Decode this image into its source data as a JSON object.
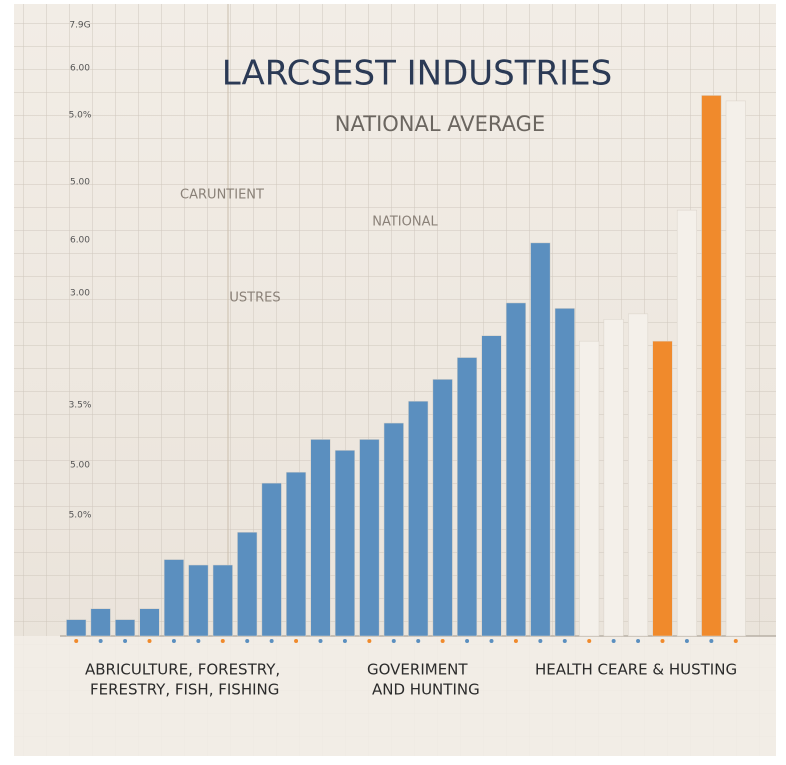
{
  "chart_data": {
    "type": "bar",
    "title": "LARCSEST INDUSTRIES",
    "subtitle": "NATIONAL AVERAGE",
    "annotations": [
      "CARUNTIENT",
      "NATIONAL",
      "USTRES"
    ],
    "side_labels": [
      "7.9G",
      "6.00",
      "5.0%",
      "5.00",
      "6.00",
      "3.00",
      "3.5%",
      "5.00",
      "5.0%"
    ],
    "category_labels": [
      "ABRICULTURE, FORESTRY,",
      "FERESTRY, FISH, FISHING",
      "GOVERIMENT",
      "AND HUNTING",
      "HEALTH CEARE & HUSTING"
    ],
    "categories": [
      null,
      null,
      null,
      null,
      null,
      null,
      null,
      null,
      null,
      null,
      null,
      null,
      null,
      null,
      null,
      null,
      null,
      null,
      null,
      null,
      null,
      null,
      null,
      null,
      null,
      null,
      null,
      null
    ],
    "values": [
      3,
      5,
      3,
      5,
      14,
      13,
      13,
      19,
      28,
      30,
      36,
      34,
      36,
      39,
      43,
      47,
      51,
      55,
      61,
      72,
      60,
      54,
      58,
      59,
      54,
      78,
      99,
      98
    ],
    "colors": [
      "#5b8fbf",
      "#5b8fbf",
      "#5b8fbf",
      "#5b8fbf",
      "#5b8fbf",
      "#5b8fbf",
      "#5b8fbf",
      "#5b8fbf",
      "#5b8fbf",
      "#5b8fbf",
      "#5b8fbf",
      "#5b8fbf",
      "#5b8fbf",
      "#5b8fbf",
      "#5b8fbf",
      "#5b8fbf",
      "#5b8fbf",
      "#5b8fbf",
      "#5b8fbf",
      "#5b8fbf",
      "#5b8fbf",
      "#f4f0ea",
      "#f4f0ea",
      "#f4f0ea",
      "#f08a2c",
      "#f4f0ea",
      "#f08a2c",
      "#f4f0ea"
    ],
    "ylim": [
      0,
      100
    ]
  }
}
